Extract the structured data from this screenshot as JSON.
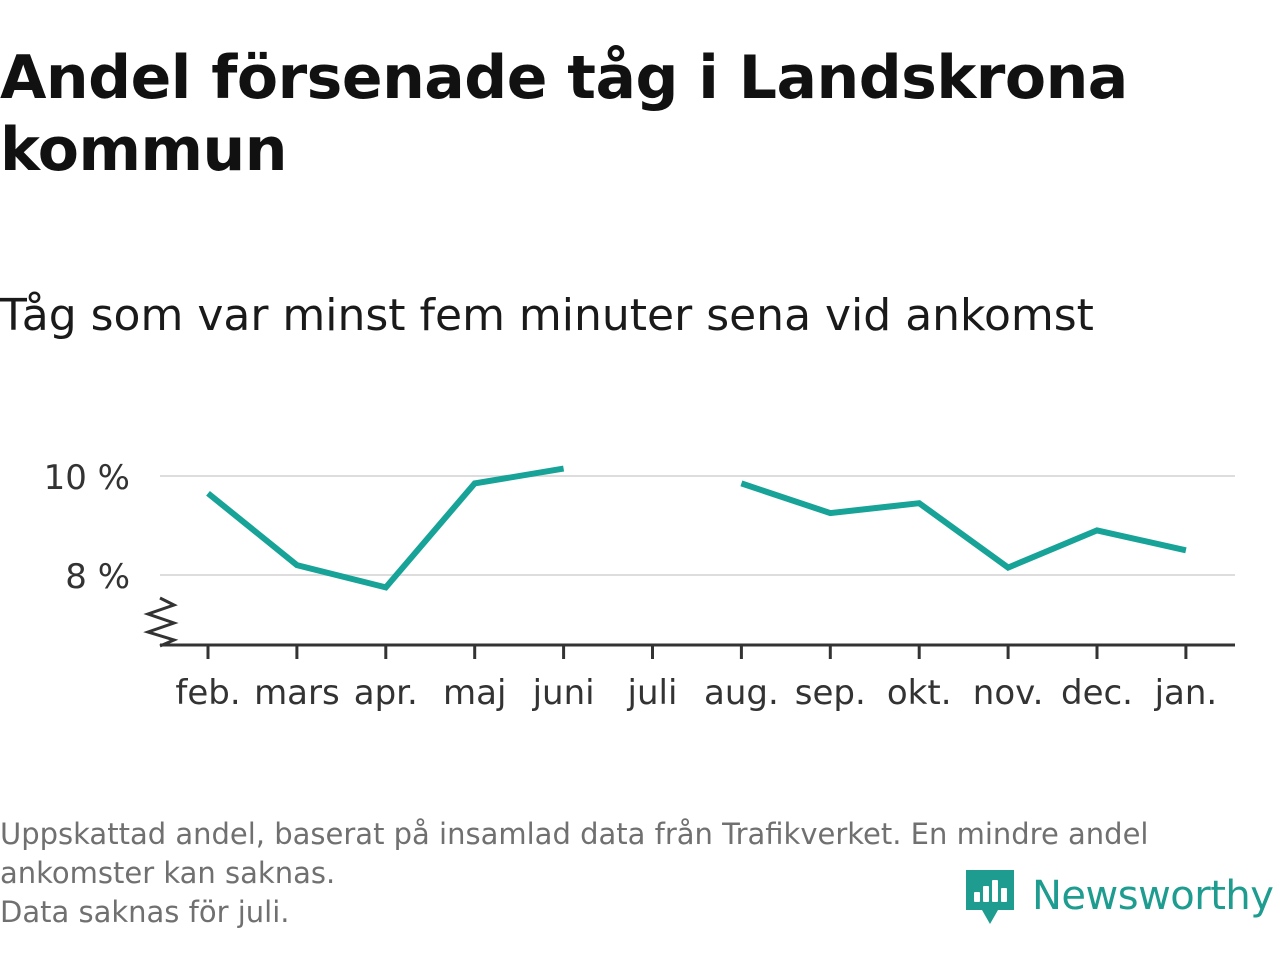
{
  "title": "Andel försenade tåg i Landskrona kommun",
  "subtitle": "Tåg som var minst fem minuter sena vid ankomst",
  "footnote": {
    "line1": "Uppskattad andel, baserat på insamlad data från Trafikverket. En mindre andel",
    "line2": "ankomster kan saknas.",
    "line3": "Data saknas för juli."
  },
  "brand": {
    "name": "Newsworthy",
    "icon": "newsworthy-logo-icon",
    "color": "#1d9c8f"
  },
  "chart_data": {
    "type": "line",
    "categories": [
      "feb.",
      "mars",
      "apr.",
      "maj",
      "juni",
      "juli",
      "aug.",
      "sep.",
      "okt.",
      "nov.",
      "dec.",
      "jan."
    ],
    "series": [
      {
        "values": [
          9.65,
          8.2,
          7.75,
          9.85,
          10.15,
          null,
          9.85,
          9.25,
          9.45,
          8.15,
          8.9,
          8.5
        ],
        "color": "#17a397"
      }
    ],
    "y_ticks": [
      8,
      10
    ],
    "y_tick_labels": [
      "8 %",
      "10 %"
    ],
    "ylim": [
      6.6,
      10.4
    ],
    "axis_break": true,
    "grid": "horizontal",
    "legend": "none",
    "xlabel": "",
    "ylabel": "",
    "gridline_color": "#dddddd",
    "axis_color": "#333333"
  }
}
